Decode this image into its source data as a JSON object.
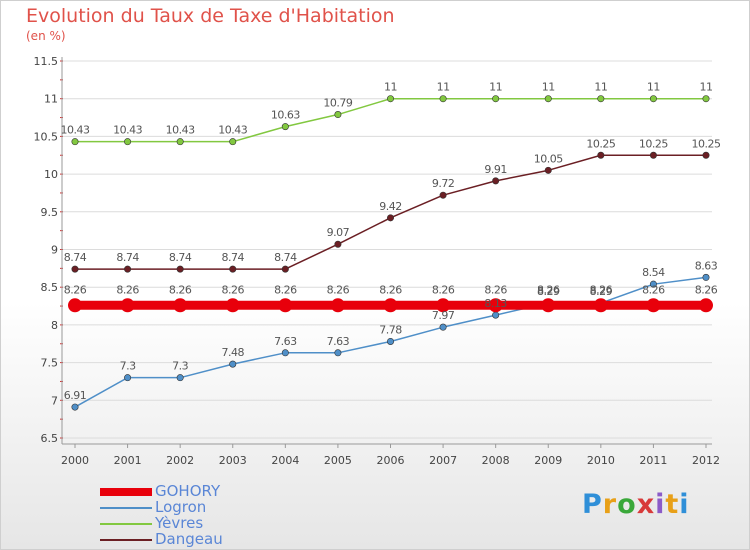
{
  "chart_data": {
    "type": "line",
    "title": "Evolution du Taux de Taxe d'Habitation",
    "subtitle": "(en %)",
    "xlabel": "",
    "ylabel": "",
    "ylim": [
      6.5,
      11.5
    ],
    "y_ticks": [
      "6.5",
      "7",
      "7.5",
      "8",
      "8.5",
      "9",
      "9.5",
      "10",
      "10.5",
      "11",
      "11.5"
    ],
    "categories": [
      "2000",
      "2001",
      "2002",
      "2003",
      "2004",
      "2005",
      "2006",
      "2007",
      "2008",
      "2009",
      "2010",
      "2011",
      "2012"
    ],
    "grid": "horizontal",
    "legend_position": "bottom-left",
    "series": [
      {
        "name": "GOHORY",
        "color": "#e8000b",
        "values": [
          8.26,
          8.26,
          8.26,
          8.26,
          8.26,
          8.26,
          8.26,
          8.26,
          8.26,
          8.26,
          8.26,
          8.26,
          8.26
        ],
        "labels": [
          "8.26",
          "8.26",
          "8.26",
          "8.26",
          "8.26",
          "8.26",
          "8.26",
          "8.26",
          "8.26",
          "8.26",
          "8.26",
          "8.26",
          "8.26"
        ]
      },
      {
        "name": "Logron",
        "color": "#4f8fc8",
        "values": [
          6.91,
          7.3,
          7.3,
          7.48,
          7.63,
          7.63,
          7.78,
          7.97,
          8.13,
          8.29,
          8.29,
          8.54,
          8.63
        ],
        "labels": [
          "6.91",
          "7.3",
          "7.3",
          "7.48",
          "7.63",
          "7.63",
          "7.78",
          "7.97",
          "8.13",
          "8.29",
          "8.29",
          "8.54",
          "8.63"
        ]
      },
      {
        "name": "Yèvres",
        "color": "#82c840",
        "values": [
          10.43,
          10.43,
          10.43,
          10.43,
          10.63,
          10.79,
          11,
          11,
          11,
          11,
          11,
          11,
          11
        ],
        "labels": [
          "10.43",
          "10.43",
          "10.43",
          "10.43",
          "10.63",
          "10.79",
          "11",
          "11",
          "11",
          "11",
          "11",
          "11",
          "11"
        ]
      },
      {
        "name": "Dangeau",
        "color": "#6b1f24",
        "values": [
          8.74,
          8.74,
          8.74,
          8.74,
          8.74,
          9.07,
          9.42,
          9.72,
          9.91,
          10.05,
          10.25,
          10.25,
          10.25
        ],
        "labels": [
          "8.74",
          "8.74",
          "8.74",
          "8.74",
          "8.74",
          "9.07",
          "9.42",
          "9.72",
          "9.91",
          "10.05",
          "10.25",
          "10.25",
          "10.25"
        ]
      }
    ]
  },
  "logo": {
    "p": "P",
    "r": "r",
    "o": "o",
    "x": "x",
    "i1": "i",
    "t": "t",
    "i2": "i"
  }
}
